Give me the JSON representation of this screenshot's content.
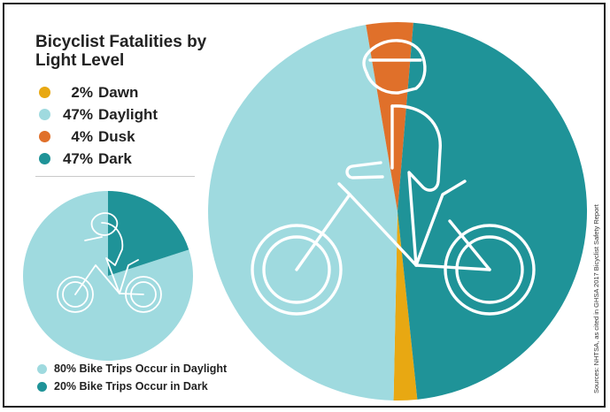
{
  "colors": {
    "dawn": "#e8a812",
    "daylight": "#9fdadf",
    "dusk": "#e0702a",
    "dark": "#1f9398",
    "bike_outline": "#ffffff"
  },
  "chart_data": [
    {
      "type": "pie",
      "title": "Bicyclist Fatalities by Light Level",
      "categories": [
        "Dawn",
        "Daylight",
        "Dusk",
        "Dark"
      ],
      "values": [
        2,
        47,
        4,
        47
      ],
      "legend": [
        {
          "pct": "2%",
          "label": "Dawn",
          "color_key": "dawn"
        },
        {
          "pct": "47%",
          "label": "Daylight",
          "color_key": "daylight"
        },
        {
          "pct": "4%",
          "label": "Dusk",
          "color_key": "dusk"
        },
        {
          "pct": "47%",
          "label": "Dark",
          "color_key": "dark"
        }
      ],
      "legend_position": "left",
      "icon": "bicyclist-icon"
    },
    {
      "type": "pie",
      "categories": [
        "Daylight",
        "Dark"
      ],
      "values": [
        80,
        20
      ],
      "legend": [
        {
          "text": "80% Bike Trips Occur in Daylight",
          "color_key": "daylight"
        },
        {
          "text": "20% Bike Trips Occur in Dark",
          "color_key": "dark"
        }
      ],
      "legend_position": "bottom",
      "icon": "bicyclist-icon"
    }
  ],
  "source": "Sources: NHTSA, as cited in GHSA 2017 Bicyclist Safety Report"
}
